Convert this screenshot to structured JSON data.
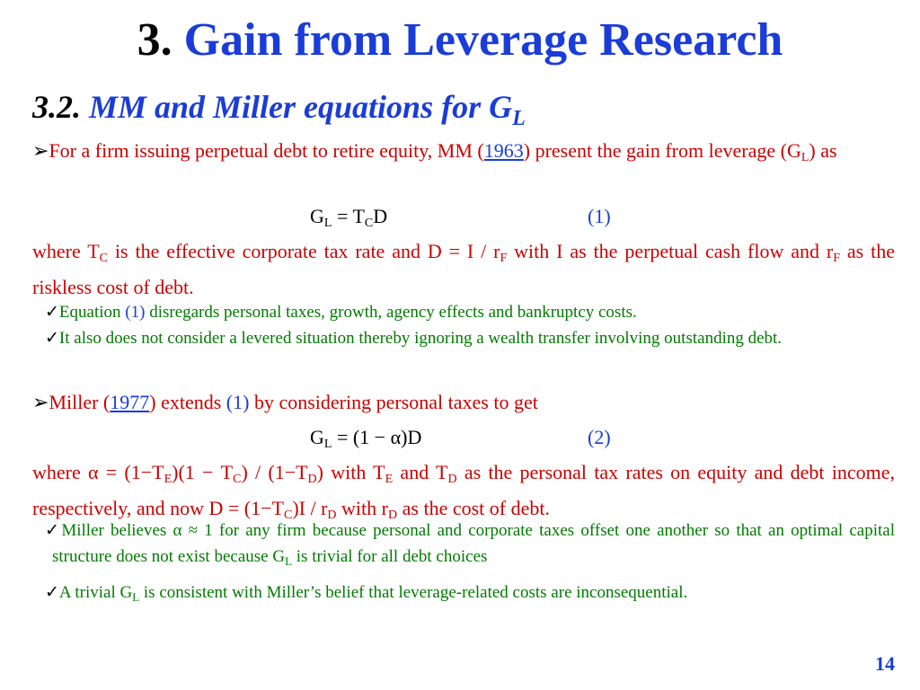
{
  "title": {
    "number": "3.",
    "text": "Gain from Leverage Research"
  },
  "subtitle": {
    "number": "3.2.",
    "text": "MM and Miller equations for G",
    "subscript": "L"
  },
  "mm_section": {
    "bullet_intro": "For a firm issuing perpetual debt to retire equity, MM (",
    "ref_year": "1963",
    "bullet_mid": ") present the gain from leverage (G",
    "bullet_sub": "L",
    "bullet_end": ") as",
    "equation": {
      "lhs": "G",
      "lhs_sub": "L",
      "rhs_pre": " = T",
      "rhs_sub": "C",
      "rhs_post": "D",
      "number": "(1)"
    },
    "where_1": "where T",
    "where_1_sub": "C",
    "where_2": " is the effective corporate tax rate and D = I / r",
    "where_2_sub": "F",
    "where_3": " with I as the perpetual cash flow and r",
    "where_3_sub": "F",
    "where_4": " as the riskless cost of debt.",
    "checks": [
      {
        "pre": "Equation ",
        "ref": "(1)",
        "post": " disregards personal taxes, growth, agency effects and bankruptcy costs."
      },
      {
        "pre": "It also does not consider a levered situation thereby ignoring a wealth transfer involving outstanding debt.",
        "ref": "",
        "post": ""
      }
    ]
  },
  "miller_section": {
    "bullet_intro": "Miller (",
    "ref_year": "1977",
    "bullet_mid": ") extends ",
    "bullet_ref": "(1)",
    "bullet_end": " by considering personal taxes to get",
    "equation": {
      "lhs": "G",
      "lhs_sub": "L",
      "rhs": " = (1 − α)D",
      "number": "(2)"
    },
    "where_line1": {
      "a": "where α = (1−T",
      "a_sub": "E",
      "b": ")(1 − T",
      "b_sub": "C",
      "c": ") / (1−T",
      "c_sub": "D",
      "d": ") with T",
      "d_sub": "E",
      "e": " and T",
      "e_sub": "D",
      "f": " as the personal tax rates on equity and debt income, respectively, and now D = (1−T",
      "f_sub": "C",
      "g": ")I / r",
      "g_sub": "D",
      "h": " with r",
      "h_sub": "D",
      "i": " as the cost of debt."
    },
    "checks": [
      {
        "pre": "Miller believes α ≈ 1 for any firm because personal and corporate taxes offset one another so that an optimal capital structure does not exist because G",
        "sub": "L",
        "post": " is trivial for all debt choices"
      },
      {
        "pre": "A trivial G",
        "sub": "L",
        "post": " is consistent with Miller’s belief that leverage-related costs are inconsequential."
      }
    ]
  },
  "page_number": "14",
  "colors": {
    "title_blue": "#1a3cd8",
    "body_red": "#cc0000",
    "check_green": "#007a00"
  },
  "icons": {
    "bullet": "arrow-bullet-icon",
    "check": "checkmark-icon"
  }
}
